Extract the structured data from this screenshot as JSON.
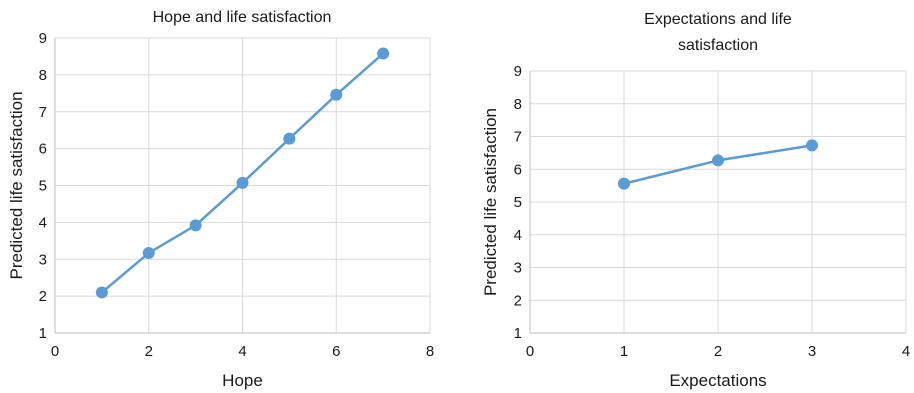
{
  "chart_data": [
    {
      "type": "line",
      "title": [
        "Hope and life satisfaction"
      ],
      "xlabel": "Hope",
      "ylabel": "Predicted life satisfaction",
      "xlim": [
        0,
        8
      ],
      "ylim": [
        1,
        9
      ],
      "x_ticks": [
        0,
        2,
        4,
        6,
        8
      ],
      "y_ticks": [
        1,
        2,
        3,
        4,
        5,
        6,
        7,
        8,
        9
      ],
      "grid": true,
      "series": [
        {
          "x": [
            1,
            2,
            3,
            4,
            5,
            6,
            7
          ],
          "y": [
            2.1,
            3.17,
            3.92,
            5.07,
            6.27,
            7.46,
            8.58
          ]
        }
      ],
      "color": "#5b9bd5"
    },
    {
      "type": "line",
      "title": [
        "Expectations and life",
        "satisfaction"
      ],
      "xlabel": "Expectations",
      "ylabel": "Predicted life satisfaction",
      "xlim": [
        0,
        4
      ],
      "ylim": [
        1,
        9
      ],
      "x_ticks": [
        0,
        1,
        2,
        3,
        4
      ],
      "y_ticks": [
        1,
        2,
        3,
        4,
        5,
        6,
        7,
        8,
        9
      ],
      "grid": true,
      "series": [
        {
          "x": [
            1,
            2,
            3
          ],
          "y": [
            5.56,
            6.27,
            6.73
          ]
        }
      ],
      "color": "#5b9bd5"
    }
  ]
}
